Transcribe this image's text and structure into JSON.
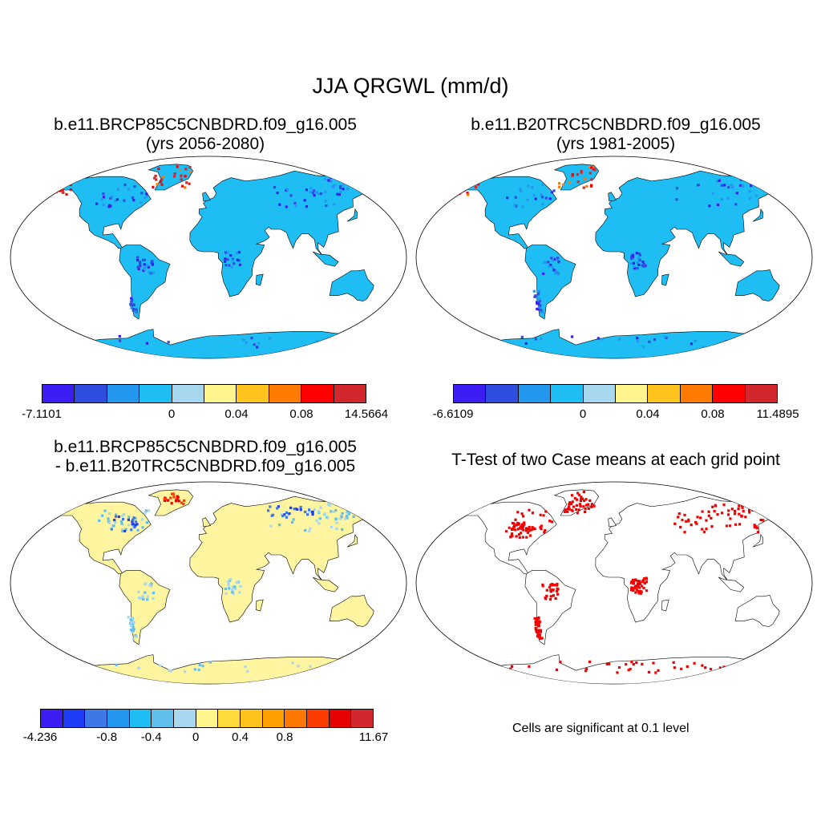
{
  "title": "JJA QRGWL (mm/d)",
  "panels": [
    {
      "title_line1": "b.e11.BRCP85C5CNBDRD.f09_g16.005",
      "title_line2": "(yrs 2056-2080)",
      "land_color": "#1EBEF5",
      "colorbar": {
        "colors": [
          "#3C1EF5",
          "#2F4EE0",
          "#2396EE",
          "#1EBEF5",
          "#A8D8F0",
          "#FFF58C",
          "#FFC31E",
          "#FF7A00",
          "#FF0000",
          "#D2282D"
        ],
        "labels": [
          "-7.1101",
          "0",
          "0.04",
          "0.08",
          "14.5664"
        ]
      }
    },
    {
      "title_line1": "b.e11.B20TRC5CNBDRD.f09_g16.005",
      "title_line2": "(yrs 1981-2005)",
      "land_color": "#1EBEF5",
      "colorbar": {
        "colors": [
          "#3C1EF5",
          "#2F4EE0",
          "#2396EE",
          "#1EBEF5",
          "#A8D8F0",
          "#FFF58C",
          "#FFC31E",
          "#FF7A00",
          "#FF0000",
          "#D2282D"
        ],
        "labels": [
          "-6.6109",
          "0",
          "0.04",
          "0.08",
          "11.4895"
        ]
      }
    },
    {
      "title_line1": "b.e11.BRCP85C5CNBDRD.f09_g16.005",
      "title_line2": "- b.e11.B20TRC5CNBDRD.f09_g16.005",
      "land_color": "#FFF5A0",
      "colorbar": {
        "colors": [
          "#3C1EF5",
          "#1E3CF5",
          "#3C78E6",
          "#2396EE",
          "#1EBEF5",
          "#5FBEEB",
          "#A8D8F0",
          "#FFF58C",
          "#FFDC3C",
          "#FFC31E",
          "#FFA000",
          "#FF7800",
          "#FF3C00",
          "#E60000",
          "#D2282D"
        ],
        "labels": [
          "-4.236",
          "-0.8",
          "-0.4",
          "0",
          "0.4",
          "0.8",
          "11.67"
        ]
      }
    },
    {
      "title_line1": "T-Test of two Case means at each grid point",
      "land_color": "#FFFFFF",
      "note": "Cells are significant at 0.1 level"
    }
  ]
}
